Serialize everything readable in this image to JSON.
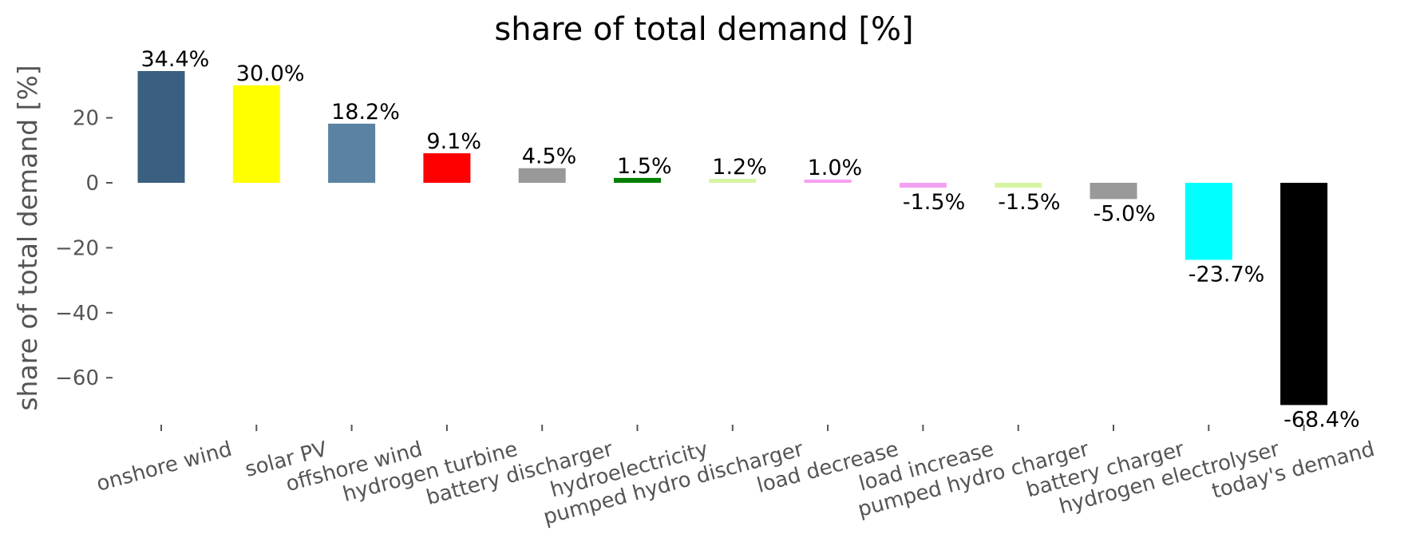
{
  "chart_data": {
    "type": "bar",
    "title": "share of total demand [%]",
    "xlabel": "",
    "ylabel": "share of total demand [%]",
    "ylim": [
      -75,
      40
    ],
    "yticks": [
      20,
      0,
      -20,
      -40,
      -60
    ],
    "ytick_labels": [
      "20",
      "0",
      "−20",
      "−40",
      "−60"
    ],
    "grid": false,
    "categories": [
      "onshore wind",
      "solar PV",
      "offshore wind",
      "hydrogen turbine",
      "battery discharger",
      "hydroelectricity",
      "pumped hydro discharger",
      "load decrease",
      "load increase",
      "pumped hydro charger",
      "battery charger",
      "hydrogen electrolyser",
      "today's demand"
    ],
    "values": [
      34.4,
      30.0,
      18.2,
      9.1,
      4.5,
      1.5,
      1.2,
      1.0,
      -1.5,
      -1.5,
      -5.0,
      -23.7,
      -68.4
    ],
    "value_labels": [
      "34.4%",
      "30.0%",
      "18.2%",
      "9.1%",
      "4.5%",
      "1.5%",
      "1.2%",
      "1.0%",
      "-1.5%",
      "-1.5%",
      "-5.0%",
      "-23.7%",
      "-68.4%"
    ],
    "colors": [
      "#3b5f80",
      "#ffff00",
      "#5b82a2",
      "#ff0000",
      "#999999",
      "#008000",
      "#d6f5a3",
      "#f4a0f4",
      "#f4a0f4",
      "#d6f5a3",
      "#999999",
      "#00ffff",
      "#000000"
    ]
  }
}
